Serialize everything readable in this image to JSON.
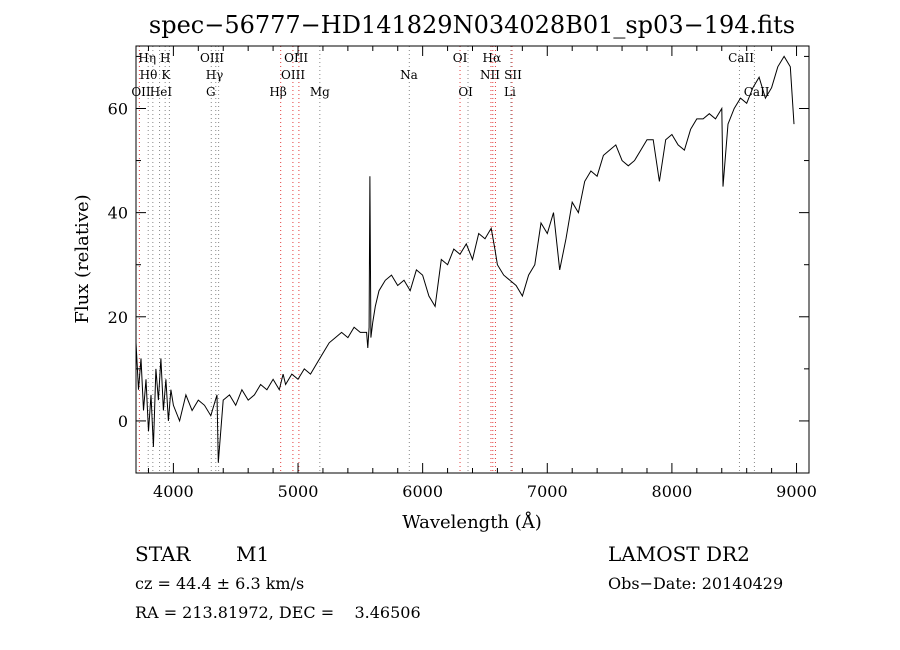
{
  "chart_data": {
    "type": "line",
    "title": "spec−56777−HD141829N034028B01_sp03−194.fits",
    "xlabel": "Wavelength (Å)",
    "ylabel": "Flux (relative)",
    "xlim": [
      3700,
      9100
    ],
    "ylim": [
      -10,
      72
    ],
    "x_ticks": [
      4000,
      5000,
      6000,
      7000,
      8000,
      9000
    ],
    "y_ticks": [
      0,
      20,
      40,
      60
    ],
    "grid": false,
    "series": [
      {
        "x": [
          3700,
          3720,
          3740,
          3760,
          3780,
          3800,
          3820,
          3840,
          3860,
          3880,
          3900,
          3920,
          3940,
          3960,
          3980,
          4000,
          4050,
          4100,
          4150,
          4200,
          4250,
          4300,
          4350,
          4360,
          4400,
          4450,
          4500,
          4550,
          4600,
          4650,
          4700,
          4750,
          4800,
          4850,
          4880,
          4900,
          4950,
          5000,
          5050,
          5100,
          5150,
          5200,
          5250,
          5300,
          5350,
          5400,
          5450,
          5500,
          5550,
          5560,
          5570,
          5577,
          5585,
          5600,
          5620,
          5650,
          5700,
          5750,
          5800,
          5850,
          5900,
          5950,
          6000,
          6050,
          6100,
          6150,
          6200,
          6250,
          6300,
          6350,
          6400,
          6450,
          6500,
          6550,
          6580,
          6600,
          6650,
          6700,
          6750,
          6800,
          6850,
          6900,
          6950,
          7000,
          7050,
          7100,
          7150,
          7200,
          7250,
          7300,
          7350,
          7400,
          7450,
          7500,
          7550,
          7600,
          7650,
          7700,
          7750,
          7800,
          7850,
          7900,
          7950,
          8000,
          8050,
          8100,
          8150,
          8200,
          8250,
          8300,
          8350,
          8400,
          8410,
          8450,
          8500,
          8550,
          8600,
          8650,
          8700,
          8750,
          8800,
          8850,
          8900,
          8950,
          8980
        ],
        "y": [
          15,
          6,
          12,
          2,
          8,
          -2,
          5,
          -5,
          10,
          4,
          12,
          2,
          8,
          0,
          6,
          3,
          0,
          5,
          2,
          4,
          3,
          1,
          5,
          -8,
          4,
          5,
          3,
          6,
          4,
          5,
          7,
          6,
          8,
          6,
          9,
          7,
          9,
          8,
          10,
          9,
          11,
          13,
          15,
          16,
          17,
          16,
          18,
          17,
          17,
          14,
          18,
          47,
          16,
          19,
          22,
          25,
          27,
          28,
          26,
          27,
          25,
          29,
          28,
          24,
          22,
          31,
          30,
          33,
          32,
          34,
          31,
          36,
          35,
          37,
          33,
          30,
          28,
          27,
          26,
          24,
          28,
          30,
          38,
          36,
          40,
          29,
          35,
          42,
          40,
          46,
          48,
          47,
          51,
          52,
          53,
          50,
          49,
          50,
          52,
          54,
          54,
          46,
          54,
          55,
          53,
          52,
          56,
          58,
          58,
          59,
          58,
          60,
          45,
          57,
          60,
          62,
          61,
          64,
          66,
          62,
          64,
          68,
          70,
          68,
          57
        ]
      }
    ],
    "lines_red": [
      {
        "label": "OII",
        "x": 3727
      },
      {
        "label": "Hβ",
        "x": 4861
      },
      {
        "label": "OIII",
        "x": 4959
      },
      {
        "label": "OIII",
        "x": 5007
      },
      {
        "label": "OI",
        "x": 6300
      },
      {
        "label": "NII",
        "x": 6548
      },
      {
        "label": "Hα",
        "x": 6563
      },
      {
        "label": "NII",
        "x": 6584
      },
      {
        "label": "SII",
        "x": 6717
      }
    ],
    "lines_gray": [
      {
        "label": "Hη",
        "x": 3835
      },
      {
        "label": "Hθ",
        "x": 3798
      },
      {
        "label": "H",
        "x": 3968
      },
      {
        "label": "K",
        "x": 3934
      },
      {
        "label": "HeI",
        "x": 3889
      },
      {
        "label": "G",
        "x": 4304
      },
      {
        "label": "Hγ",
        "x": 4340
      },
      {
        "label": "OIII",
        "x": 4363
      },
      {
        "label": "Mg",
        "x": 5175
      },
      {
        "label": "Na",
        "x": 5893
      },
      {
        "label": "OI",
        "x": 6364
      },
      {
        "label": "Li",
        "x": 6708
      },
      {
        "label": "CaII",
        "x": 8542
      },
      {
        "label": "CaII",
        "x": 8662
      }
    ],
    "line_labels": [
      {
        "text": "Hη",
        "x": 3790,
        "row": 1
      },
      {
        "text": "H",
        "x": 3935,
        "row": 1
      },
      {
        "text": "OIII",
        "x": 4310,
        "row": 1
      },
      {
        "text": "OIII",
        "x": 4985,
        "row": 1
      },
      {
        "text": "OI",
        "x": 6300,
        "row": 1
      },
      {
        "text": "Hα",
        "x": 6555,
        "row": 1
      },
      {
        "text": "CaII",
        "x": 8555,
        "row": 1
      },
      {
        "text": "Hθ",
        "x": 3800,
        "row": 2
      },
      {
        "text": "K",
        "x": 3940,
        "row": 2
      },
      {
        "text": "Hγ",
        "x": 4330,
        "row": 2
      },
      {
        "text": "OIII",
        "x": 4960,
        "row": 2
      },
      {
        "text": "Na",
        "x": 5890,
        "row": 2
      },
      {
        "text": "NII",
        "x": 6540,
        "row": 2
      },
      {
        "text": "SII",
        "x": 6725,
        "row": 2
      },
      {
        "text": "OII",
        "x": 3740,
        "row": 3
      },
      {
        "text": "HeI",
        "x": 3900,
        "row": 3
      },
      {
        "text": "G",
        "x": 4300,
        "row": 3
      },
      {
        "text": "Hβ",
        "x": 4840,
        "row": 3
      },
      {
        "text": "Mg",
        "x": 5175,
        "row": 3
      },
      {
        "text": "OI",
        "x": 6345,
        "row": 3
      },
      {
        "text": "Li",
        "x": 6700,
        "row": 3
      },
      {
        "text": "CaII",
        "x": 8680,
        "row": 3
      }
    ]
  },
  "info": {
    "object_type": "STAR",
    "subclass": "M1",
    "survey": "LAMOST DR2",
    "cz": "cz = 44.4 ± 6.3 km/s",
    "obs_date": "Obs−Date: 20140429",
    "coords": "RA = 213.81972, DEC =    3.46506"
  }
}
